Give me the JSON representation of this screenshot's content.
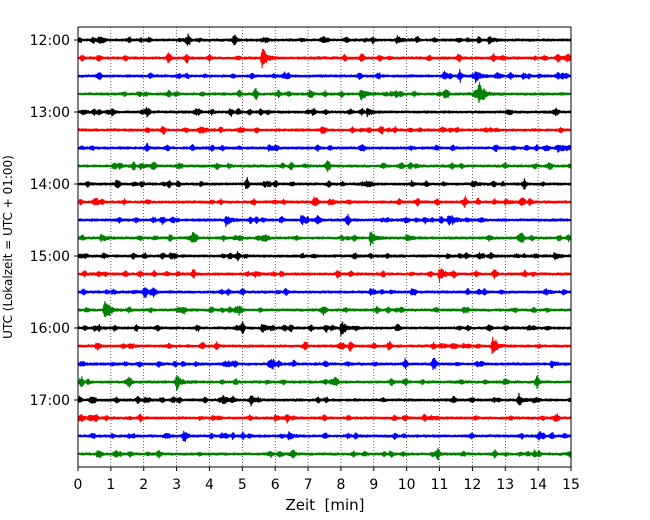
{
  "chart_data": {
    "type": "line",
    "title": "",
    "xlabel": "Zeit  [min]",
    "ylabel": "UTC (Lokalzeit = UTC + 01:00)",
    "xlim": [
      0,
      15
    ],
    "x_ticks": [
      "0",
      "1",
      "2",
      "3",
      "4",
      "5",
      "6",
      "7",
      "8",
      "9",
      "10",
      "11",
      "12",
      "13",
      "14",
      "15"
    ],
    "y_ticks": [
      "12:00",
      "13:00",
      "14:00",
      "15:00",
      "16:00",
      "17:00"
    ],
    "grid_vertical": true,
    "trace_interval_minutes": 15,
    "traces": [
      {
        "start": "12:00",
        "color": "#000000",
        "events": [
          {
            "t": 9.7,
            "a": 0.4
          },
          {
            "t": 12.5,
            "a": 0.4
          }
        ]
      },
      {
        "start": "12:15",
        "color": "#ff0000",
        "events": [
          {
            "t": 5.6,
            "a": 1.0
          }
        ]
      },
      {
        "start": "12:30",
        "color": "#0000ff",
        "events": [
          {
            "t": 12.1,
            "a": 0.6
          }
        ]
      },
      {
        "start": "12:45",
        "color": "#008000",
        "events": [
          {
            "t": 8.6,
            "a": 0.8
          },
          {
            "t": 12.2,
            "a": 1.2
          }
        ]
      },
      {
        "start": "13:00",
        "color": "#000000",
        "events": [
          {
            "t": 8.8,
            "a": 0.4
          }
        ]
      },
      {
        "start": "13:15",
        "color": "#ff0000",
        "events": [
          {
            "t": 3.8,
            "a": 0.3
          }
        ]
      },
      {
        "start": "13:30",
        "color": "#0000ff",
        "events": [
          {
            "t": 5.8,
            "a": 0.3
          }
        ]
      },
      {
        "start": "13:45",
        "color": "#008000",
        "events": [
          {
            "t": 1.9,
            "a": 0.3
          }
        ]
      },
      {
        "start": "14:00",
        "color": "#000000",
        "events": [
          {
            "t": 12.0,
            "a": 0.4
          }
        ]
      },
      {
        "start": "14:15",
        "color": "#ff0000",
        "events": [
          {
            "t": 13.0,
            "a": 0.3
          }
        ]
      },
      {
        "start": "14:30",
        "color": "#0000ff",
        "events": [
          {
            "t": 4.5,
            "a": 0.6
          },
          {
            "t": 6.8,
            "a": 0.5
          },
          {
            "t": 11.4,
            "a": 0.5
          }
        ]
      },
      {
        "start": "14:45",
        "color": "#008000",
        "events": [
          {
            "t": 0.7,
            "a": 0.4
          },
          {
            "t": 8.9,
            "a": 0.8
          },
          {
            "t": 10.0,
            "a": 0.4
          }
        ]
      },
      {
        "start": "15:00",
        "color": "#000000",
        "events": [
          {
            "t": 14.5,
            "a": 0.4
          }
        ]
      },
      {
        "start": "15:15",
        "color": "#ff0000",
        "events": [
          {
            "t": 11.0,
            "a": 0.8
          }
        ]
      },
      {
        "start": "15:30",
        "color": "#0000ff",
        "events": [
          {
            "t": 2.0,
            "a": 0.2
          }
        ]
      },
      {
        "start": "15:45",
        "color": "#008000",
        "events": [
          {
            "t": 0.8,
            "a": 1.0
          }
        ]
      },
      {
        "start": "16:00",
        "color": "#000000",
        "events": [
          {
            "t": 8.0,
            "a": 1.0
          },
          {
            "t": 5.6,
            "a": 0.5
          }
        ]
      },
      {
        "start": "16:15",
        "color": "#ff0000",
        "events": [
          {
            "t": 12.6,
            "a": 1.0
          }
        ]
      },
      {
        "start": "16:30",
        "color": "#0000ff",
        "events": [
          {
            "t": 5.8,
            "a": 0.3
          },
          {
            "t": 14.4,
            "a": 0.4
          }
        ]
      },
      {
        "start": "16:45",
        "color": "#008000",
        "events": [
          {
            "t": 3.0,
            "a": 0.7
          }
        ]
      },
      {
        "start": "17:00",
        "color": "#000000",
        "events": [
          {
            "t": 4.4,
            "a": 0.5
          },
          {
            "t": 13.4,
            "a": 0.4
          }
        ]
      },
      {
        "start": "17:15",
        "color": "#ff0000",
        "events": [
          {
            "t": 6.0,
            "a": 0.3
          }
        ]
      },
      {
        "start": "17:30",
        "color": "#0000ff",
        "events": [
          {
            "t": 6.4,
            "a": 0.4
          }
        ]
      },
      {
        "start": "17:45",
        "color": "#008000",
        "events": [
          {
            "t": 6.1,
            "a": 0.3
          }
        ]
      }
    ]
  }
}
